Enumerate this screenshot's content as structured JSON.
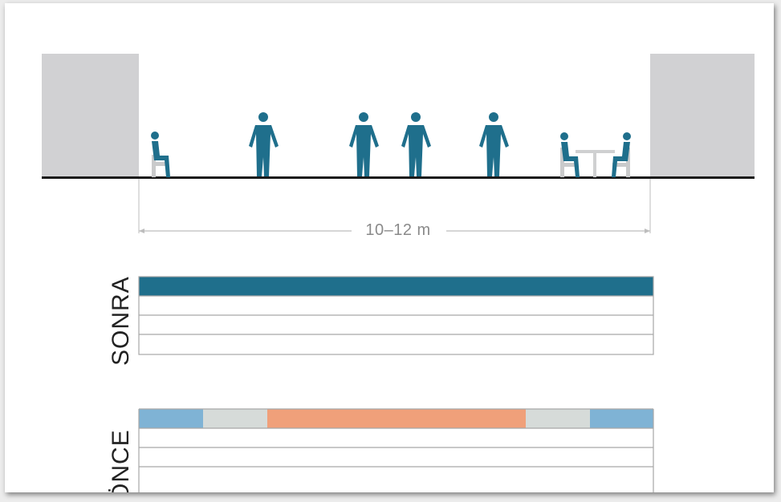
{
  "diagram": {
    "dimension_label": "10–12 m",
    "after_label": "SONRA",
    "before_label": "ÖNCE",
    "colors": {
      "building": "#d1d1d3",
      "figure": "#1f6f8c",
      "chair": "#c9cacb",
      "table": "#cfd0d1",
      "ground": "#1a1a1a",
      "dimension_line": "#bdbdbd",
      "after_bar": "#1f6f8c",
      "before_sidewalk": "#7fb3d5",
      "before_buffer": "#d6dbd9",
      "before_roadway": "#f0a07a",
      "row_border": "#a7a7a7"
    },
    "before_segments": [
      "sidewalk",
      "buffer",
      "roadway",
      "buffer",
      "sidewalk"
    ]
  }
}
